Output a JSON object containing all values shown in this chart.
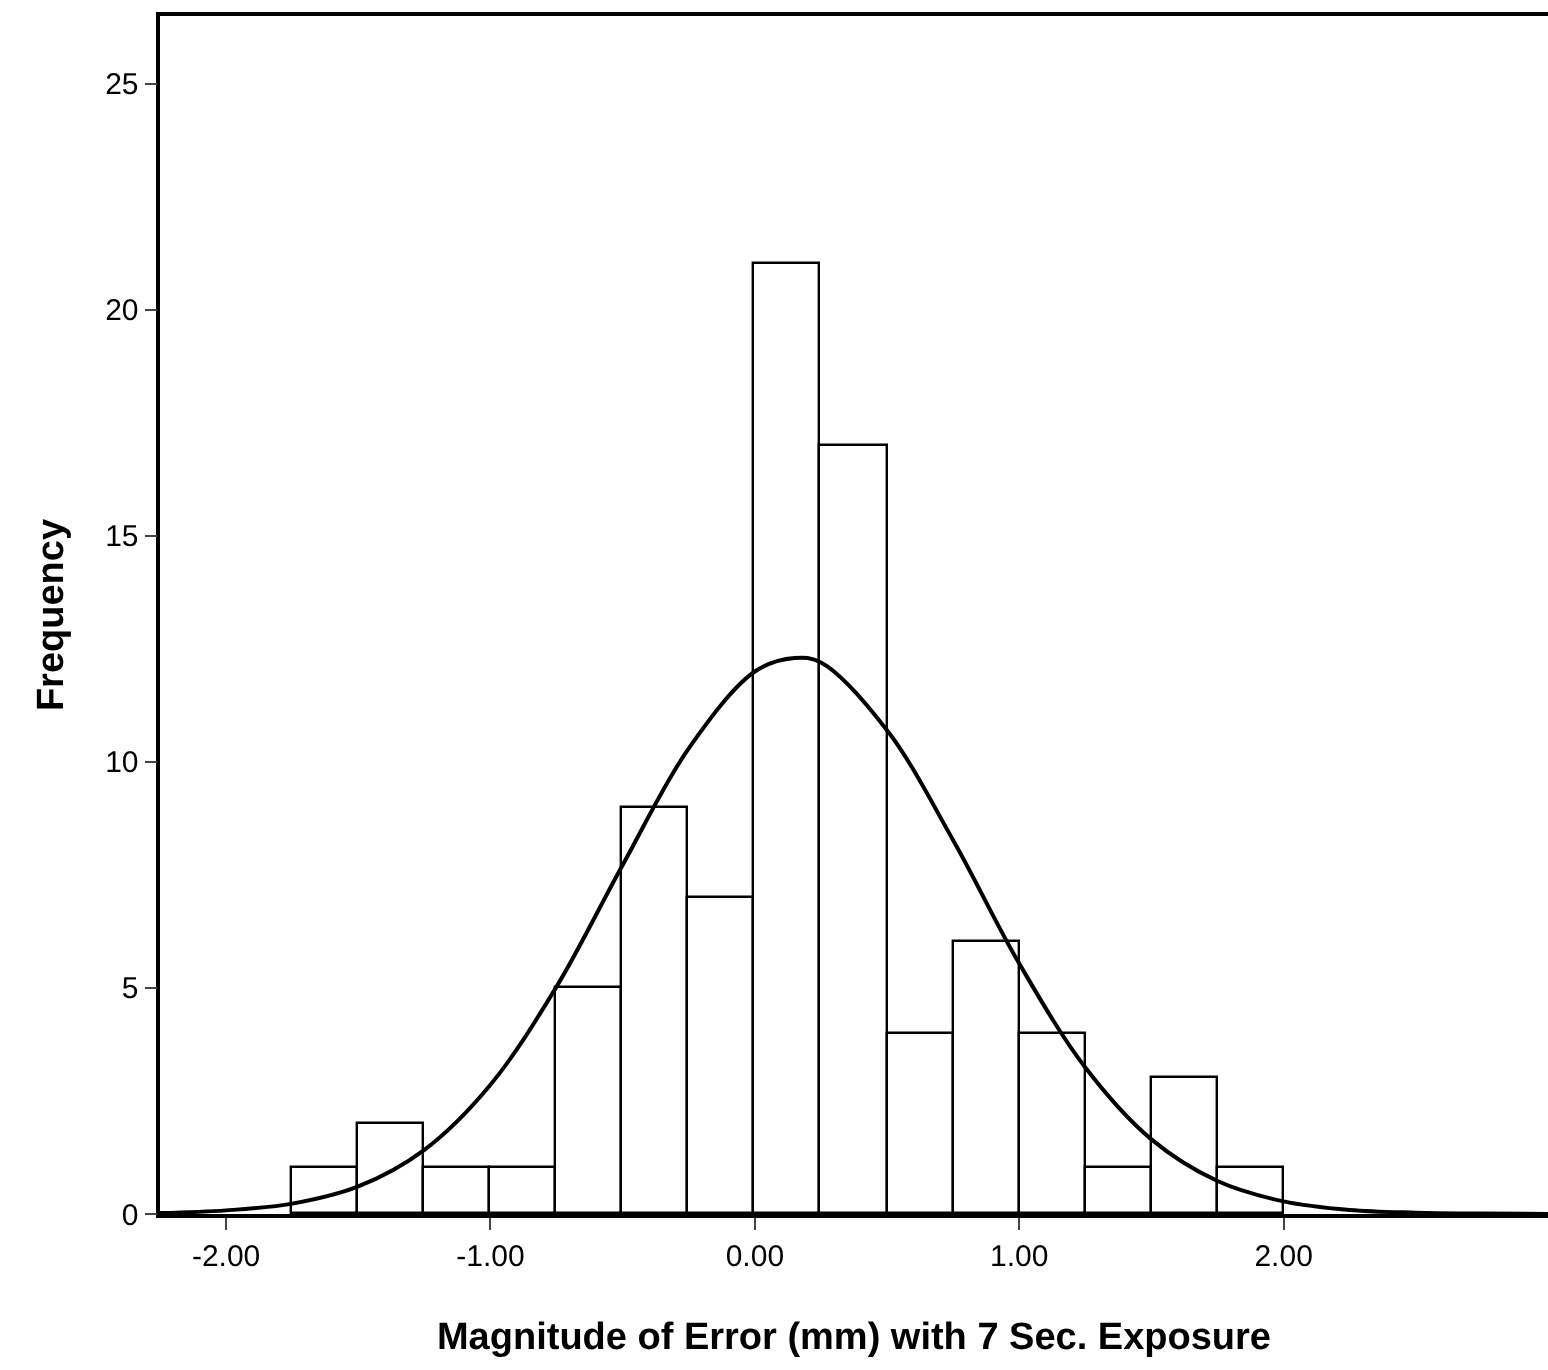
{
  "chart_data": {
    "type": "histogram",
    "xlabel": "Magnitude of Error (mm) with 7 Sec. Exposure",
    "ylabel": "Frequency",
    "bins": [
      -1.75,
      -1.5,
      -1.25,
      -1.0,
      -0.75,
      -0.5,
      -0.25,
      0,
      0.25,
      0.5,
      0.75,
      1.0,
      1.25,
      1.5,
      1.75,
      2.0
    ],
    "values": [
      1,
      2,
      1,
      1,
      5,
      9,
      7,
      21,
      17,
      4,
      6,
      4,
      1,
      3,
      1
    ],
    "color": "#ffffff",
    "series": [
      {
        "type": "line",
        "color": "#000000",
        "x": [
          -2.25,
          -2.0,
          -1.75,
          -1.5,
          -1.25,
          -1.0,
          -0.75,
          -0.5,
          -0.25,
          0,
          0.15,
          0.25,
          0.5,
          0.75,
          1.0,
          1.25,
          1.5,
          1.75,
          2.0,
          2.25,
          2.5,
          2.75,
          3.0
        ],
        "values": [
          0.02,
          0.08,
          0.23,
          0.61,
          1.42,
          2.86,
          5.03,
          7.72,
          10.3,
          12.0,
          12.3,
          12.2,
          10.7,
          8.27,
          5.54,
          3.24,
          1.65,
          0.73,
          0.28,
          0.09,
          0.03,
          0.01,
          0
        ]
      }
    ],
    "xlim": [
      -2.25,
      3.0
    ],
    "xticks": [
      {
        "value": -2,
        "label": "-2.00"
      },
      {
        "value": -1,
        "label": "-1.00"
      },
      {
        "value": 0,
        "label": "0.00"
      },
      {
        "value": 1,
        "label": "1.00"
      },
      {
        "value": 2,
        "label": "2.00"
      }
    ],
    "ylim": [
      0,
      26.5
    ],
    "yticks": [
      0,
      5,
      10,
      15,
      20,
      25
    ],
    "grid": false
  }
}
